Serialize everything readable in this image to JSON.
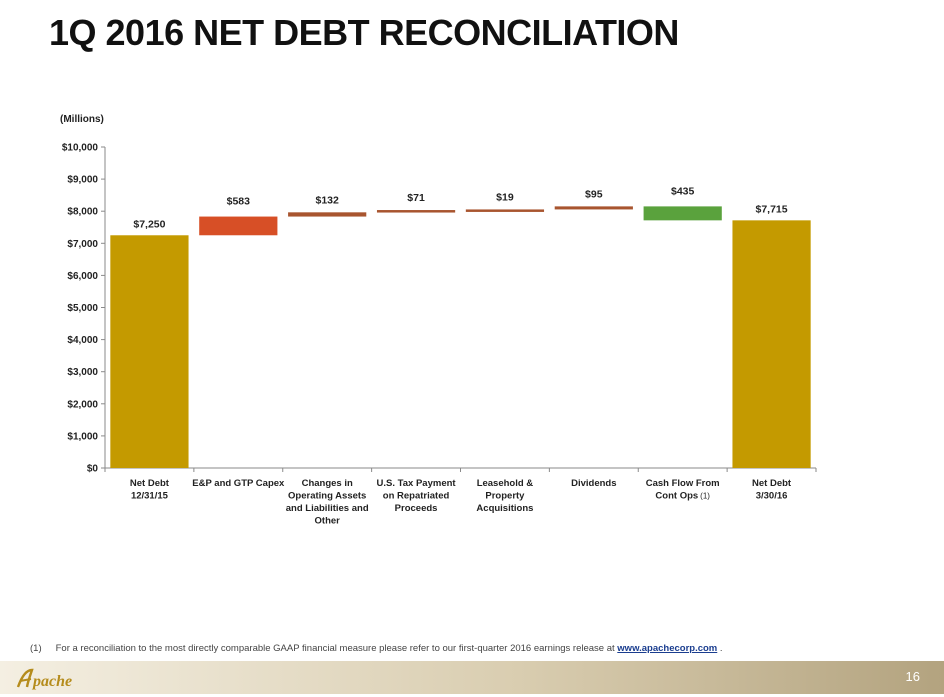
{
  "slide": {
    "title": "1Q 2016 NET DEBT RECONCILIATION",
    "page_number": "16",
    "logo_text": "Apache"
  },
  "footnote": {
    "marker": "(1)",
    "text": "For a reconciliation to the most directly comparable GAAP financial measure please refer to our first-quarter 2016 earnings release at",
    "link": "www.apachecorp.com",
    "tail": "."
  },
  "colors": {
    "total": "#c49a00",
    "increase": "#d74f26",
    "small_increase": "#a8552f",
    "decrease": "#5aa23d",
    "axis": "#8a8a8a"
  },
  "chart_data": {
    "type": "bar",
    "subtype": "waterfall",
    "unit_label": "(Millions)",
    "ylim": [
      0,
      10000
    ],
    "yticks": [
      0,
      1000,
      2000,
      3000,
      4000,
      5000,
      6000,
      7000,
      8000,
      9000,
      10000
    ],
    "ytick_labels": [
      "$0",
      "$1,000",
      "$2,000",
      "$3,000",
      "$4,000",
      "$5,000",
      "$6,000",
      "$7,000",
      "$8,000",
      "$9,000",
      "$10,000"
    ],
    "grid": false,
    "legend": "none",
    "bars": [
      {
        "label_lines": [
          "Net Debt",
          "12/31/15"
        ],
        "kind": "total",
        "start": 0,
        "end": 7250,
        "value_label": "$7,250",
        "color_key": "total"
      },
      {
        "label_lines": [
          "E&P and GTP Capex"
        ],
        "kind": "delta",
        "start": 7250,
        "end": 7833,
        "value_label": "$583",
        "color_key": "increase"
      },
      {
        "label_lines": [
          "Changes in",
          "Operating Assets",
          "and Liabilities and",
          "Other"
        ],
        "kind": "delta",
        "start": 7833,
        "end": 7965,
        "value_label": "$132",
        "color_key": "small_increase"
      },
      {
        "label_lines": [
          "U.S. Tax Payment",
          "on Repatriated",
          "Proceeds"
        ],
        "kind": "delta",
        "start": 7965,
        "end": 8036,
        "value_label": "$71",
        "color_key": "small_increase"
      },
      {
        "label_lines": [
          "Leasehold &",
          "Property",
          "Acquisitions"
        ],
        "kind": "delta",
        "start": 8036,
        "end": 8055,
        "value_label": "$19",
        "color_key": "small_increase"
      },
      {
        "label_lines": [
          "Dividends"
        ],
        "kind": "delta",
        "start": 8055,
        "end": 8150,
        "value_label": "$95",
        "color_key": "small_increase"
      },
      {
        "label_lines": [
          "Cash Flow From",
          "Cont Ops"
        ],
        "footnote_ref": "(1)",
        "kind": "delta",
        "start": 8150,
        "end": 7715,
        "value_label": "$435",
        "color_key": "decrease"
      },
      {
        "label_lines": [
          "Net Debt",
          "3/30/16"
        ],
        "kind": "total",
        "start": 0,
        "end": 7715,
        "value_label": "$7,715",
        "color_key": "total"
      }
    ]
  }
}
